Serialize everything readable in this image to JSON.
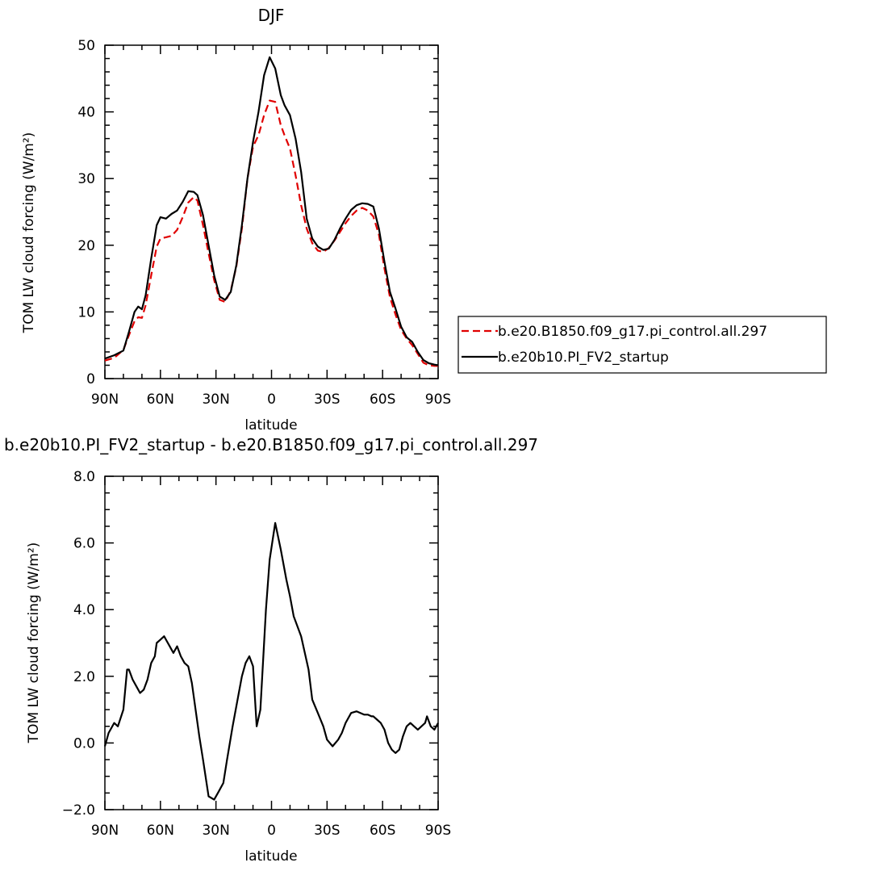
{
  "chart_data": [
    {
      "type": "line",
      "title": "DJF",
      "xlabel": "latitude",
      "ylabel": "TOM LW cloud forcing (W/m²)",
      "xlim": [
        90,
        -90
      ],
      "ylim": [
        0,
        50
      ],
      "x_ticks": [
        {
          "value": 90,
          "label": "90N"
        },
        {
          "value": 60,
          "label": "60N"
        },
        {
          "value": 30,
          "label": "30N"
        },
        {
          "value": 0,
          "label": "0"
        },
        {
          "value": -30,
          "label": "30S"
        },
        {
          "value": -60,
          "label": "60S"
        },
        {
          "value": -90,
          "label": "90S"
        }
      ],
      "y_ticks": [
        {
          "value": 0,
          "label": "0"
        },
        {
          "value": 10,
          "label": "10"
        },
        {
          "value": 20,
          "label": "20"
        },
        {
          "value": 30,
          "label": "30"
        },
        {
          "value": 40,
          "label": "40"
        },
        {
          "value": 50,
          "label": "50"
        }
      ],
      "legend_position": "right",
      "series": [
        {
          "name": "b.e20.B1850.f09_g17.pi_control.all.297",
          "color": "#e00000",
          "dash": "dashed",
          "x": [
            90,
            85,
            80,
            77,
            74,
            72,
            70,
            68,
            65,
            62,
            60,
            57,
            54,
            51,
            48,
            45,
            42,
            40,
            37,
            34,
            31,
            28,
            25,
            22,
            19,
            16,
            13,
            10,
            7,
            4,
            1,
            -2,
            -5,
            -7,
            -10,
            -13,
            -16,
            -19,
            -22,
            -25,
            -28,
            -31,
            -34,
            -37,
            -40,
            -43,
            -46,
            -49,
            -52,
            -55,
            -58,
            -61,
            -64,
            -67,
            -70,
            -73,
            -76,
            -79,
            -82,
            -85,
            -88,
            -90
          ],
          "y": [
            2.7,
            3.1,
            4.3,
            6.5,
            8.6,
            9.2,
            9.1,
            11.0,
            15.5,
            19.8,
            21.0,
            21.2,
            21.4,
            22.3,
            24.2,
            26.4,
            27.2,
            26.7,
            23.0,
            18.8,
            14.8,
            11.8,
            11.5,
            13.2,
            16.8,
            22.5,
            30.0,
            34.8,
            36.5,
            39.5,
            41.7,
            41.5,
            38.0,
            36.5,
            34.5,
            30.5,
            26.0,
            22.5,
            20.3,
            19.2,
            19.0,
            19.6,
            20.7,
            22.0,
            23.3,
            24.4,
            25.2,
            25.6,
            25.2,
            24.3,
            21.6,
            16.5,
            12.2,
            9.6,
            7.3,
            6.0,
            5.0,
            3.7,
            2.4,
            2.0,
            1.9,
            1.9
          ]
        },
        {
          "name": "b.e20b10.PI_FV2_startup",
          "color": "#000000",
          "dash": "solid",
          "x": [
            90,
            85,
            80,
            77,
            74,
            72,
            70,
            68,
            65,
            62,
            60,
            57,
            54,
            51,
            48,
            45,
            42,
            40,
            37,
            34,
            31,
            28,
            25,
            22,
            19,
            16,
            13,
            10,
            7,
            4,
            1,
            -2,
            -5,
            -7,
            -10,
            -13,
            -16,
            -19,
            -22,
            -25,
            -28,
            -31,
            -34,
            -37,
            -40,
            -43,
            -46,
            -49,
            -52,
            -55,
            -58,
            -61,
            -64,
            -67,
            -70,
            -73,
            -76,
            -79,
            -82,
            -85,
            -88,
            -90
          ],
          "y": [
            3.0,
            3.5,
            4.2,
            7.0,
            10.0,
            10.8,
            10.4,
            12.5,
            18.0,
            23.0,
            24.2,
            24.0,
            24.7,
            25.2,
            26.5,
            28.1,
            28.0,
            27.5,
            24.5,
            20.0,
            15.5,
            12.3,
            11.8,
            13.0,
            17.0,
            23.0,
            30.0,
            35.5,
            40.0,
            45.5,
            48.2,
            46.5,
            42.5,
            41.0,
            39.5,
            36.0,
            31.0,
            24.0,
            21.0,
            19.8,
            19.3,
            19.5,
            20.8,
            22.5,
            24.0,
            25.3,
            26.0,
            26.3,
            26.2,
            25.8,
            22.5,
            17.5,
            13.0,
            10.5,
            7.8,
            6.2,
            5.5,
            4.0,
            2.8,
            2.3,
            2.1,
            2.0
          ]
        }
      ]
    },
    {
      "type": "line",
      "title": "b.e20b10.PI_FV2_startup - b.e20.B1850.f09_g17.pi_control.all.297",
      "xlabel": "latitude",
      "ylabel": "TOM LW cloud forcing (W/m²)",
      "xlim": [
        90,
        -90
      ],
      "ylim": [
        -2,
        8
      ],
      "x_ticks": [
        {
          "value": 90,
          "label": "90N"
        },
        {
          "value": 60,
          "label": "60N"
        },
        {
          "value": 30,
          "label": "30N"
        },
        {
          "value": 0,
          "label": "0"
        },
        {
          "value": -30,
          "label": "30S"
        },
        {
          "value": -60,
          "label": "60S"
        },
        {
          "value": -90,
          "label": "90S"
        }
      ],
      "y_ticks": [
        {
          "value": -2,
          "label": "−2.0"
        },
        {
          "value": 0,
          "label": "0.0"
        },
        {
          "value": 2,
          "label": "2.0"
        },
        {
          "value": 4,
          "label": "4.0"
        },
        {
          "value": 6,
          "label": "6.0"
        },
        {
          "value": 8,
          "label": "8.0"
        }
      ],
      "series": [
        {
          "color": "#000000",
          "dash": "solid",
          "x": [
            90,
            88,
            85,
            83,
            80,
            78,
            77,
            75,
            73,
            71,
            69,
            67,
            65,
            63,
            62,
            60,
            58,
            57,
            55,
            53,
            51,
            49,
            47,
            45,
            43,
            41,
            39,
            37,
            34,
            31,
            29,
            26,
            24,
            21,
            18,
            16,
            14,
            12,
            10,
            8,
            6,
            5,
            3,
            1,
            -2,
            -5,
            -8,
            -10,
            -12,
            -14,
            -16,
            -18,
            -20,
            -22,
            -25,
            -28,
            -30,
            -33,
            -36,
            -38,
            -40,
            -43,
            -46,
            -48,
            -50,
            -52,
            -54,
            -55,
            -57,
            -59,
            -61,
            -63,
            -65,
            -67,
            -69,
            -71,
            -73,
            -75,
            -77,
            -79,
            -81,
            -83,
            -84,
            -86,
            -88,
            -90
          ],
          "y": [
            -0.1,
            0.3,
            0.6,
            0.5,
            1.0,
            2.2,
            2.2,
            1.9,
            1.7,
            1.5,
            1.6,
            1.9,
            2.4,
            2.6,
            3.0,
            3.1,
            3.2,
            3.1,
            2.9,
            2.7,
            2.9,
            2.6,
            2.4,
            2.3,
            1.8,
            1.0,
            0.2,
            -0.5,
            -1.6,
            -1.7,
            -1.5,
            -1.2,
            -0.5,
            0.5,
            1.4,
            2.0,
            2.4,
            2.6,
            2.3,
            0.5,
            1.0,
            2.0,
            4.0,
            5.5,
            6.6,
            5.8,
            4.9,
            4.4,
            3.8,
            3.5,
            3.2,
            2.7,
            2.2,
            1.3,
            0.9,
            0.5,
            0.1,
            -0.1,
            0.1,
            0.3,
            0.6,
            0.9,
            0.95,
            0.9,
            0.85,
            0.85,
            0.8,
            0.8,
            0.7,
            0.6,
            0.4,
            0.0,
            -0.2,
            -0.3,
            -0.2,
            0.2,
            0.5,
            0.6,
            0.5,
            0.4,
            0.5,
            0.6,
            0.8,
            0.5,
            0.4,
            0.6
          ]
        }
      ]
    }
  ]
}
